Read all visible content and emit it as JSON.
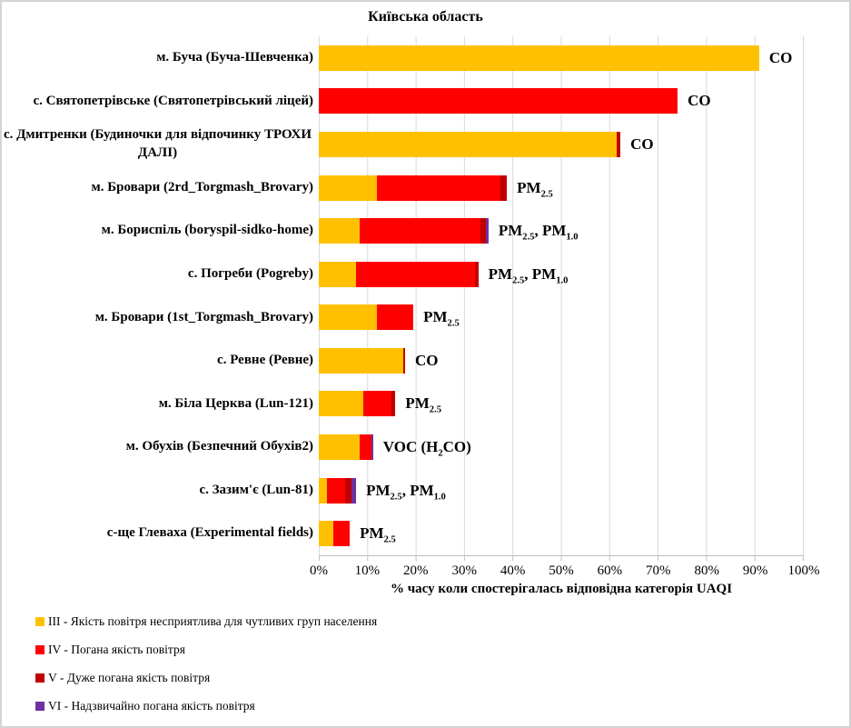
{
  "title": "Київська область",
  "chart_data": {
    "type": "bar",
    "orientation": "horizontal",
    "stacked": true,
    "unit": "percent",
    "title": "Київська область",
    "xlabel": "% часу коли спостерігалась відповідна категорія UAQI",
    "xlim": [
      0,
      100
    ],
    "x_ticks": [
      "0%",
      "10%",
      "20%",
      "30%",
      "40%",
      "50%",
      "60%",
      "70%",
      "80%",
      "90%",
      "100%"
    ],
    "grid": true,
    "legend_position": "bottom-left",
    "categories": [
      "м. Буча (Буча-Шевченка)",
      "с. Святопетрівське (Святопетрівський ліцей)",
      "с. Дмитренки (Будиночки для відпочинку ТРОХИ ДАЛІ)",
      "м. Бровари (2rd_Torgmash_Brovary)",
      "м. Бориспіль (boryspil-sidko-home)",
      "с. Погреби (Pogreby)",
      "м. Бровари (1st_Torgmash_Brovary)",
      "с. Ревне (Ревне)",
      "м. Біла Церква (Lun-121)",
      "м. Обухів (Безпечний Обухів2)",
      "с. Зазим'є (Lun-81)",
      "с-ще Глеваха (Experimental fields)"
    ],
    "series": [
      {
        "id": "III",
        "name": "III - Якість повітря несприятлива  для чутливих  груп населення",
        "color": "#FFC000",
        "values": [
          90.8,
          0,
          61.4,
          11.9,
          8.5,
          7.7,
          11.9,
          17.4,
          9.1,
          8.5,
          1.6,
          3.0
        ]
      },
      {
        "id": "IV",
        "name": "IV - Погана  якість повітря",
        "color": "#FF0000",
        "values": [
          0,
          74.0,
          0,
          25.6,
          24.8,
          24.6,
          7.6,
          0,
          5.9,
          2.3,
          3.9,
          3.4
        ]
      },
      {
        "id": "V",
        "name": "V - Дуже погана  якість повітря",
        "color": "#C00000",
        "values": [
          0,
          0,
          0.8,
          1.3,
          1.1,
          0.6,
          0,
          0.4,
          0.8,
          0,
          1.3,
          0
        ]
      },
      {
        "id": "VI",
        "name": "VI - Надзвичайно  погана  якість повітря",
        "color": "#7030A0",
        "values": [
          0,
          0,
          0,
          0,
          0.6,
          0,
          0,
          0,
          0,
          0.4,
          0.9,
          0
        ]
      }
    ],
    "bar_labels": [
      "CO",
      "CO",
      "CO",
      "PM2.5",
      "PM2.5, PM1.0",
      "PM2.5, PM1.0",
      "PM2.5",
      "CO",
      "PM2.5",
      "VOC (H2CO)",
      "PM2.5, PM1.0",
      "PM2.5"
    ]
  }
}
